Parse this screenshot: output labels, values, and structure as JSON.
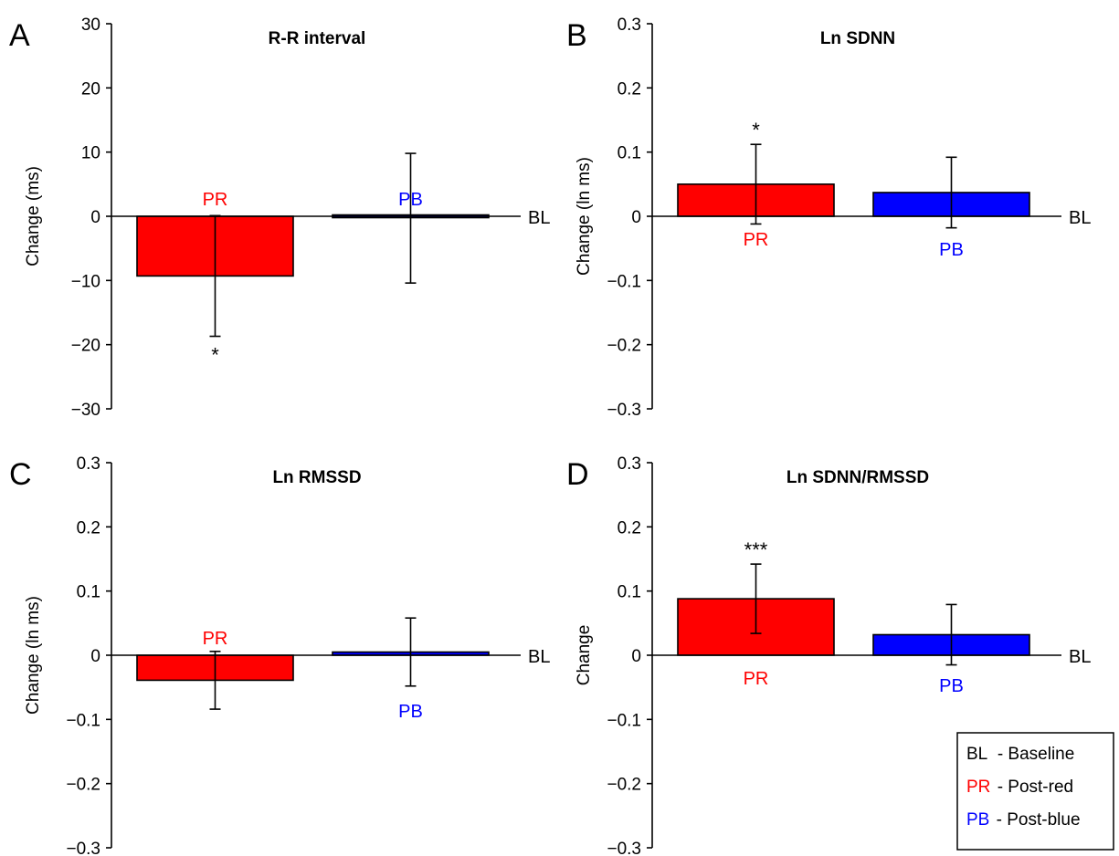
{
  "colors": {
    "red": "#ff0000",
    "blue": "#0000ff",
    "axis": "#000000"
  },
  "baseline_label": "BL",
  "legend": {
    "items": [
      {
        "code": "BL",
        "desc": "- Baseline",
        "color": "#000000"
      },
      {
        "code": "PR",
        "desc": "- Post-red",
        "color": "#ff0000"
      },
      {
        "code": "PB",
        "desc": "- Post-blue",
        "color": "#0000ff"
      }
    ]
  },
  "chart_data": [
    {
      "type": "bar",
      "panel": "A",
      "title": "R-R interval",
      "ylabel": "Change (ms)",
      "ylim": [
        -30,
        30
      ],
      "yticks": [
        30,
        20,
        10,
        0,
        -10,
        -20,
        -30
      ],
      "ytick_labels": [
        "30",
        "20",
        "10",
        "0",
        "−10",
        "−20",
        "−30"
      ],
      "categories": [
        "PR",
        "PB"
      ],
      "values": [
        -9.3,
        -0.3
      ],
      "errors": [
        9.4,
        10.1
      ],
      "colors": [
        "#ff0000",
        "#0000ff"
      ],
      "significance": [
        "*",
        ""
      ]
    },
    {
      "type": "bar",
      "panel": "B",
      "title": "Ln SDNN",
      "ylabel": "Change (ln ms)",
      "ylim": [
        -0.3,
        0.3
      ],
      "yticks": [
        0.3,
        0.2,
        0.1,
        0,
        -0.1,
        -0.2,
        -0.3
      ],
      "ytick_labels": [
        "0.3",
        "0.2",
        "0.1",
        "0",
        "−0.1",
        "−0.2",
        "−0.3"
      ],
      "categories": [
        "PR",
        "PB"
      ],
      "values": [
        0.05,
        0.037
      ],
      "errors": [
        0.062,
        0.055
      ],
      "colors": [
        "#ff0000",
        "#0000ff"
      ],
      "significance": [
        "*",
        ""
      ]
    },
    {
      "type": "bar",
      "panel": "C",
      "title": "Ln RMSSD",
      "ylabel": "Change (ln ms)",
      "ylim": [
        -0.3,
        0.3
      ],
      "yticks": [
        0.3,
        0.2,
        0.1,
        0,
        -0.1,
        -0.2,
        -0.3
      ],
      "ytick_labels": [
        "0.3",
        "0.2",
        "0.1",
        "0",
        "−0.1",
        "−0.2",
        "−0.3"
      ],
      "categories": [
        "PR",
        "PB"
      ],
      "values": [
        -0.039,
        0.005
      ],
      "errors": [
        0.045,
        0.053
      ],
      "colors": [
        "#ff0000",
        "#0000ff"
      ],
      "significance": [
        "",
        ""
      ]
    },
    {
      "type": "bar",
      "panel": "D",
      "title": "Ln SDNN/RMSSD",
      "ylabel": "Change",
      "ylim": [
        -0.3,
        0.3
      ],
      "yticks": [
        0.3,
        0.2,
        0.1,
        0,
        -0.1,
        -0.2,
        -0.3
      ],
      "ytick_labels": [
        "0.3",
        "0.2",
        "0.1",
        "0",
        "−0.1",
        "−0.2",
        "−0.3"
      ],
      "categories": [
        "PR",
        "PB"
      ],
      "values": [
        0.088,
        0.032
      ],
      "errors": [
        0.054,
        0.047
      ],
      "colors": [
        "#ff0000",
        "#0000ff"
      ],
      "significance": [
        "***",
        ""
      ]
    }
  ]
}
